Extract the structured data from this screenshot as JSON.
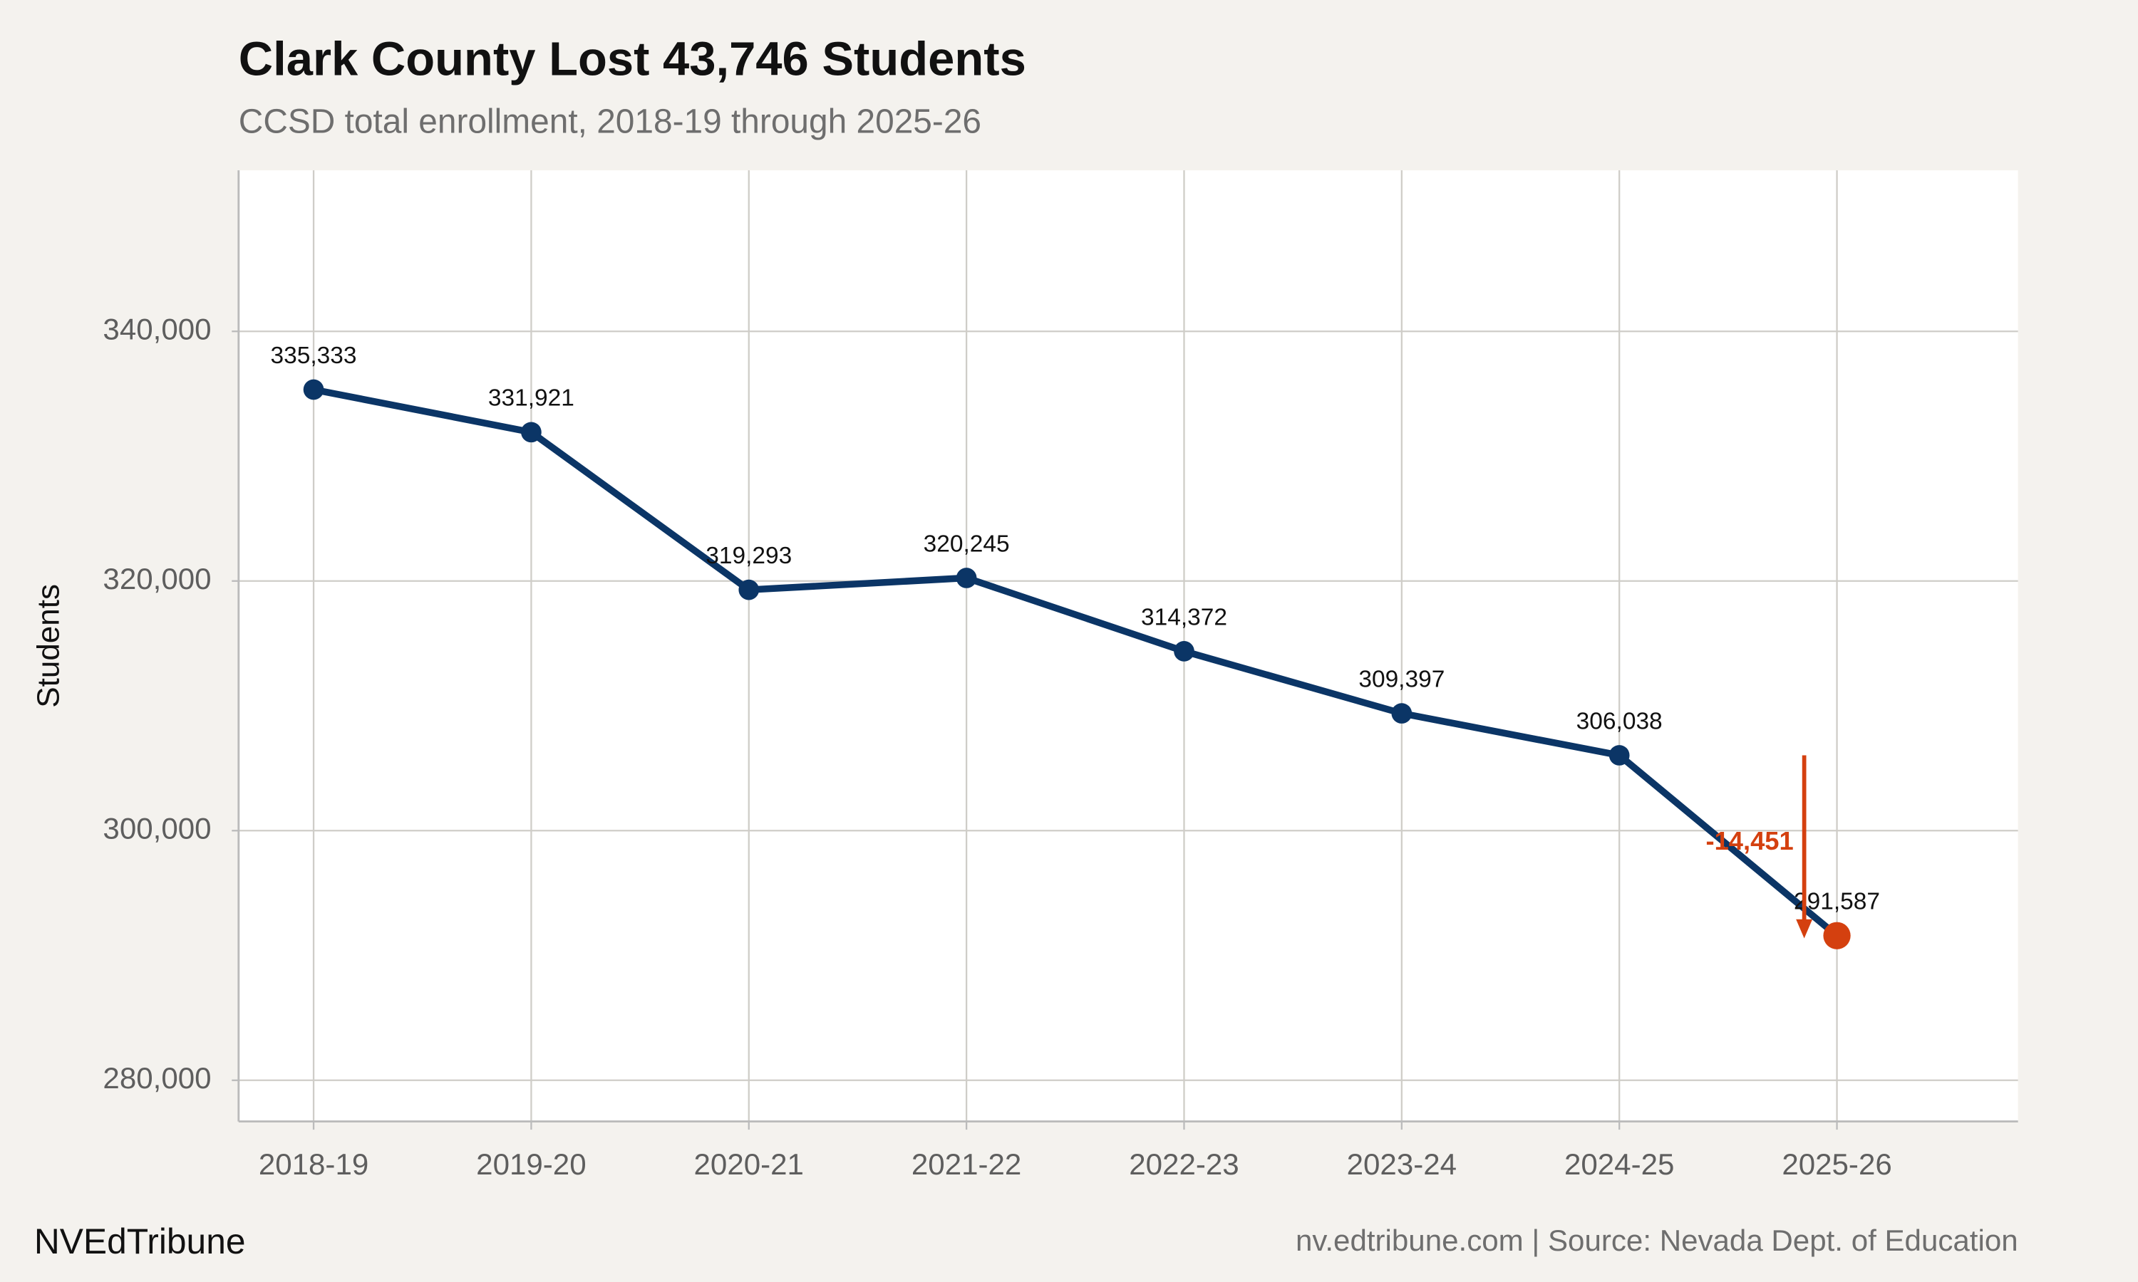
{
  "chart_data": {
    "type": "line",
    "title": "Clark County Lost 43,746 Students",
    "subtitle": "CCSD total enrollment, 2018-19 through 2025-26",
    "y_label": "Students",
    "categories": [
      "2018-19",
      "2019-20",
      "2020-21",
      "2021-22",
      "2022-23",
      "2023-24",
      "2024-25",
      "2025-26"
    ],
    "series": [
      {
        "name": "CCSD total enrollment",
        "color": "#0b3566",
        "values": [
          335333,
          331921,
          319293,
          320245,
          314372,
          309397,
          306038,
          291587
        ],
        "value_labels": [
          "335,333",
          "331,921",
          "319,293",
          "320,245",
          "314,372",
          "309,397",
          "306,038",
          "291,587"
        ]
      }
    ],
    "highlight_color": "#d4400f",
    "annotation": "-14,451",
    "ylim": [
      276700,
      352900
    ],
    "yticks": [
      {
        "value": 280000,
        "label": "280,000"
      },
      {
        "value": 300000,
        "label": "300,000"
      },
      {
        "value": 320000,
        "label": "320,000"
      },
      {
        "value": 340000,
        "label": "340,000"
      }
    ],
    "grid": true,
    "footer_left": "NVEdTribune",
    "footer_right": "nv.edtribune.com | Source: Nevada Dept. of Education"
  }
}
